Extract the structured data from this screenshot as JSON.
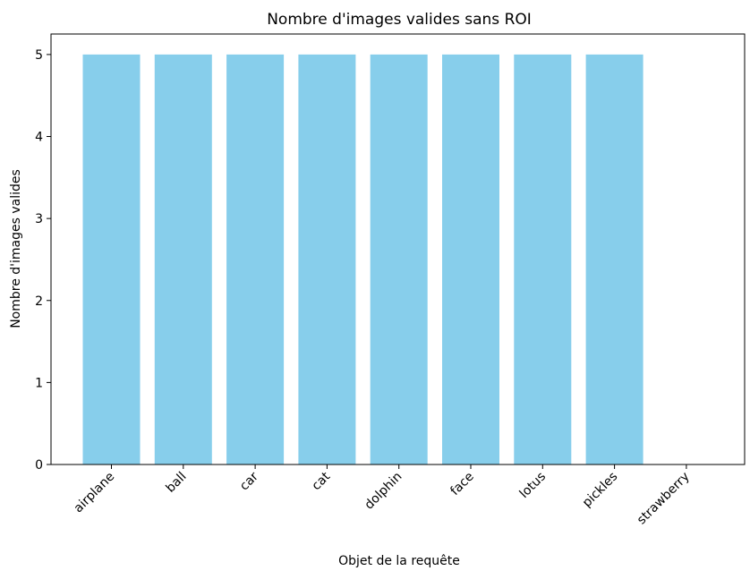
{
  "chart_data": {
    "type": "bar",
    "title": "Nombre d'images valides sans ROI",
    "xlabel": "Objet de la requête",
    "ylabel": "Nombre d'images valides",
    "categories": [
      "airplane",
      "ball",
      "car",
      "cat",
      "dolphin",
      "face",
      "lotus",
      "pickles",
      "strawberry"
    ],
    "values": [
      5,
      5,
      5,
      5,
      5,
      5,
      5,
      5,
      0
    ],
    "ylim": [
      0,
      5.25
    ],
    "yticks": [
      "0",
      "1",
      "2",
      "3",
      "4",
      "5"
    ],
    "grid": false,
    "bar_color": "#87CEEB"
  }
}
